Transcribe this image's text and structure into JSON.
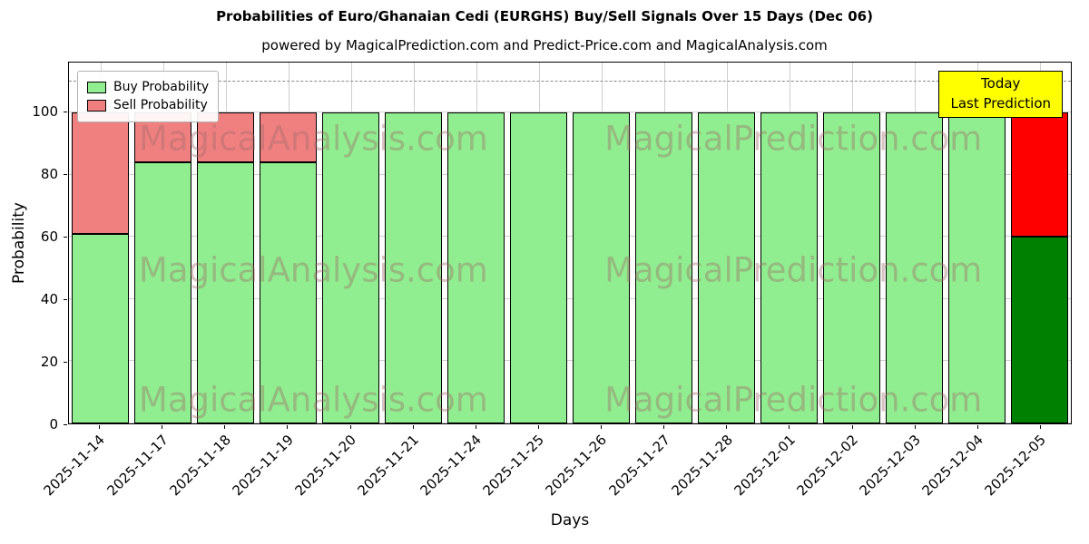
{
  "title": "Probabilities of Euro/Ghanaian Cedi (EURGHS) Buy/Sell Signals Over 15 Days (Dec 06)",
  "subtitle": "powered by MagicalPrediction.com and Predict-Price.com and MagicalAnalysis.com",
  "legend": {
    "buy": "Buy Probability",
    "sell": "Sell Probability"
  },
  "annotation": {
    "line1": "Today",
    "line2": "Last Prediction",
    "background": "#ffff00"
  },
  "watermarks": {
    "left": "MagicalAnalysis.com",
    "right": "MagicalPrediction.com"
  },
  "chart_data": {
    "type": "bar",
    "stacked": true,
    "title": "Probabilities of Euro/Ghanaian Cedi (EURGHS) Buy/Sell Signals Over 15 Days (Dec 06)",
    "xlabel": "Days",
    "ylabel": "Probability",
    "categories": [
      "2025-11-14",
      "2025-11-17",
      "2025-11-18",
      "2025-11-19",
      "2025-11-20",
      "2025-11-21",
      "2025-11-24",
      "2025-11-25",
      "2025-11-26",
      "2025-11-27",
      "2025-11-28",
      "2025-12-01",
      "2025-12-02",
      "2025-12-03",
      "2025-12-04",
      "2025-12-05"
    ],
    "series": [
      {
        "name": "Buy Probability",
        "color": "#90ee90",
        "values": [
          61,
          84,
          84,
          84,
          100,
          100,
          100,
          100,
          100,
          100,
          100,
          100,
          100,
          100,
          100,
          60
        ]
      },
      {
        "name": "Sell Probability",
        "color": "#f08080",
        "values": [
          39,
          16,
          16,
          16,
          0,
          0,
          0,
          0,
          0,
          0,
          0,
          0,
          0,
          0,
          0,
          40
        ]
      }
    ],
    "today_colors": {
      "buy": "#008000",
      "sell": "#ff0000"
    },
    "yticks": [
      0,
      20,
      40,
      60,
      80,
      100
    ],
    "ylim": [
      0,
      116
    ],
    "dashed_line_y": 110,
    "grid": true,
    "legend_position": "upper left"
  }
}
